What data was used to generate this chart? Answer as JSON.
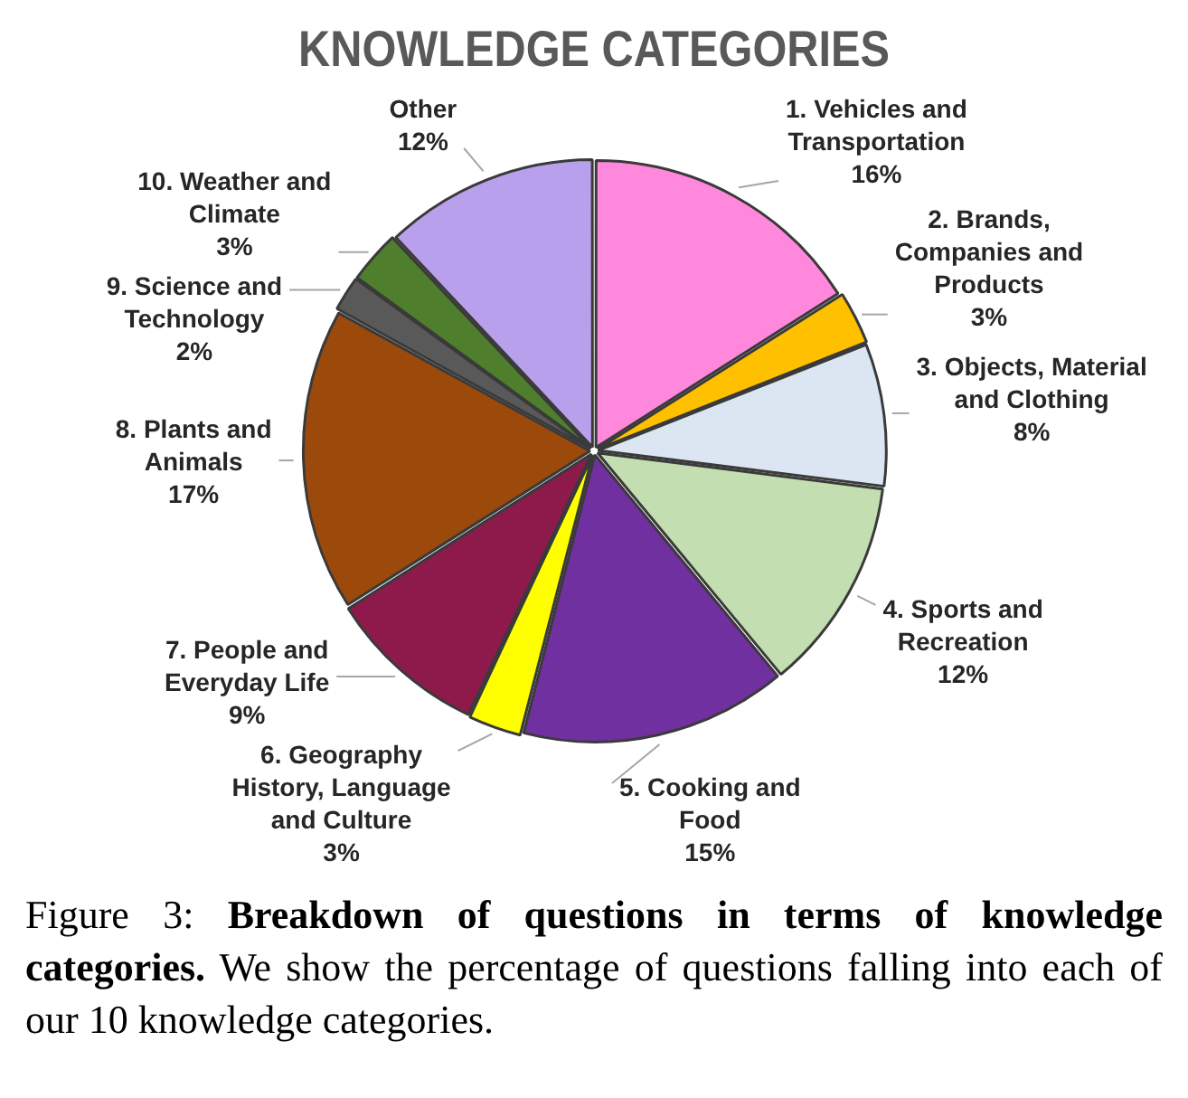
{
  "chart_data": {
    "type": "pie",
    "title": "KNOWLEDGE CATEGORIES",
    "categories": [
      "1. Vehicles and Transportation",
      "2. Brands, Companies and Products",
      "3. Objects, Material and Clothing",
      "4. Sports and Recreation",
      "5. Cooking and Food",
      "6. Geography History, Language and Culture",
      "7. People and Everyday Life",
      "8. Plants and Animals",
      "9. Science and Technology",
      "10. Weather and Climate",
      "Other"
    ],
    "values": [
      16,
      3,
      8,
      12,
      15,
      3,
      9,
      17,
      2,
      3,
      12
    ],
    "colors": [
      "#ff88dd",
      "#ffc000",
      "#dce6f2",
      "#c3deb0",
      "#7030a0",
      "#ffff00",
      "#8e1a4b",
      "#9c4a0c",
      "#595959",
      "#4f7f2c",
      "#b9a0ec"
    ],
    "value_labels": [
      "16%",
      "3%",
      "8%",
      "12%",
      "15%",
      "3%",
      "9%",
      "17%",
      "2%",
      "3%",
      "12%"
    ],
    "legend": false,
    "annotations": [
      "Figure 3:",
      "Breakdown of questions in terms of knowledge categories.",
      "We show the percentage of questions falling into each of our 10 knowledge categories."
    ]
  }
}
